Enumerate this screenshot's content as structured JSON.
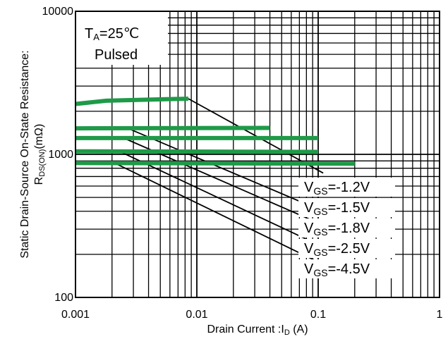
{
  "chart_data": {
    "type": "line",
    "x_scale": "log",
    "y_scale": "log",
    "xlim": [
      0.001,
      1
    ],
    "ylim": [
      100,
      10000
    ],
    "xlabel": {
      "main": "Drain Current :I",
      "sub": "D",
      "unit": " (A)"
    },
    "ylabel": {
      "line1": "Static Drain-Source On-State Resistance:",
      "main": "R",
      "sub": "DS(ON)",
      "unit": "(mΩ)"
    },
    "x_ticks": [
      {
        "value": 0.001,
        "label": "0.001"
      },
      {
        "value": 0.01,
        "label": "0.01"
      },
      {
        "value": 0.1,
        "label": "0.1"
      },
      {
        "value": 1,
        "label": "1"
      }
    ],
    "y_ticks": [
      {
        "value": 10000,
        "label": "10000"
      },
      {
        "value": 1000,
        "label": "1000"
      },
      {
        "value": 100,
        "label": "100"
      }
    ],
    "conditions": {
      "line1": {
        "main": "T",
        "sub": "A",
        "rest": "=25℃"
      },
      "line2": "Pulsed"
    },
    "grid": true,
    "colors": {
      "green": "#1f9a48",
      "black": "#000000"
    },
    "series": [
      {
        "label": {
          "main": "V",
          "sub": "GS",
          "rest": "=-1.2V"
        },
        "flat": [
          [
            0.001,
            2250
          ],
          [
            0.0018,
            2370
          ],
          [
            0.0085,
            2450
          ]
        ],
        "slope": [
          [
            0.0085,
            2450
          ],
          [
            0.11,
            740
          ]
        ]
      },
      {
        "label": {
          "main": "V",
          "sub": "GS",
          "rest": "=-1.5V"
        },
        "flat": [
          [
            0.001,
            1520
          ],
          [
            0.04,
            1530
          ]
        ],
        "slope": [
          [
            0.0027,
            1520
          ],
          [
            0.11,
            400
          ]
        ]
      },
      {
        "label": {
          "main": "V",
          "sub": "GS",
          "rest": "=-1.8V"
        },
        "flat": [
          [
            0.001,
            1300
          ],
          [
            0.1,
            1300
          ]
        ],
        "slope": [
          [
            0.0025,
            1300
          ],
          [
            0.11,
            320
          ]
        ]
      },
      {
        "label": {
          "main": "V",
          "sub": "GS",
          "rest": "=-2.5V"
        },
        "flat": [
          [
            0.001,
            1050
          ],
          [
            0.1,
            1040
          ]
        ],
        "slope": [
          [
            0.0023,
            1050
          ],
          [
            0.11,
            225
          ]
        ]
      },
      {
        "label": {
          "main": "V",
          "sub": "GS",
          "rest": "=-4.5V"
        },
        "flat": [
          [
            0.001,
            870
          ],
          [
            0.2,
            860
          ]
        ],
        "slope": [
          [
            0.0021,
            870
          ],
          [
            0.11,
            170
          ]
        ]
      }
    ]
  }
}
